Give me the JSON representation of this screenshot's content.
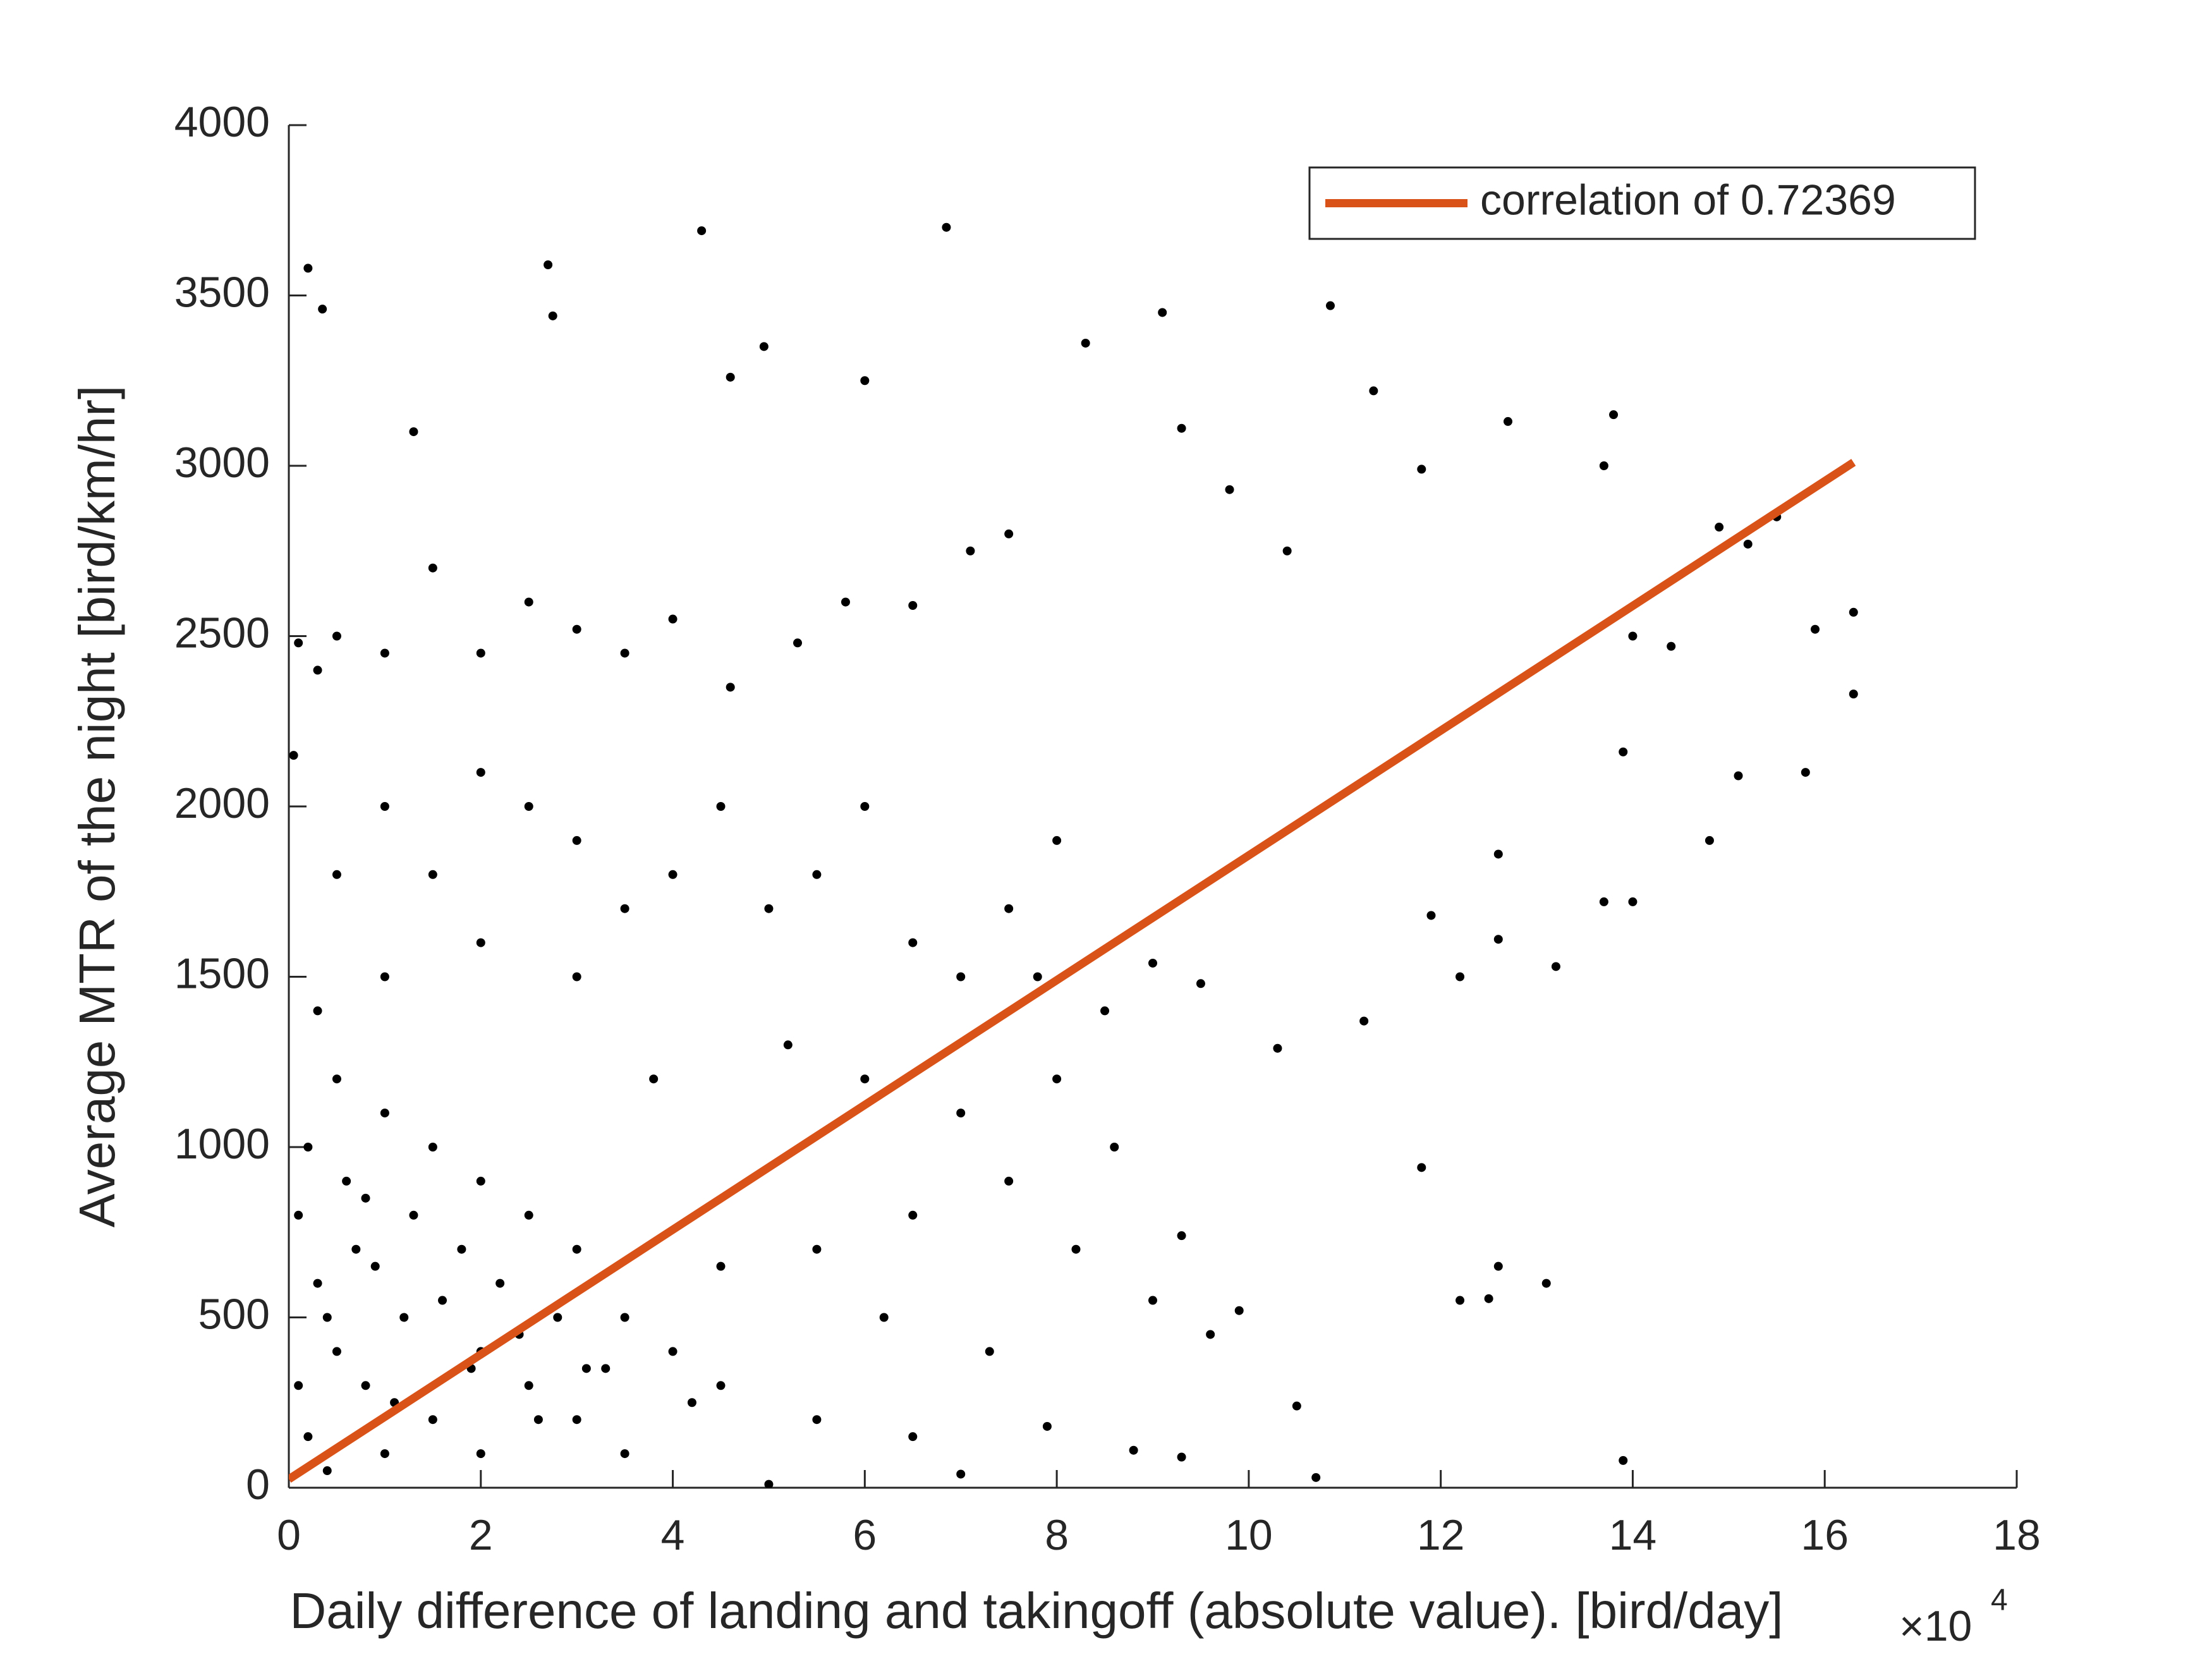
{
  "chart_data": {
    "type": "scatter",
    "xlabel": "Daily difference of landing and takingoff (absolute value). [bird/day]",
    "ylabel": "Average MTR of the night [bird/km/hr]",
    "x_scale_label": "×10",
    "x_scale_exponent": "4",
    "xlim": [
      0,
      18
    ],
    "xticks": [
      0,
      2,
      4,
      6,
      8,
      10,
      12,
      14,
      16,
      18
    ],
    "ylim": [
      0,
      4000
    ],
    "yticks": [
      0,
      500,
      1000,
      1500,
      2000,
      2500,
      3000,
      3500,
      4000
    ],
    "grid": false,
    "legend": "upper right",
    "series": [
      {
        "type": "scatter",
        "color": "#000000",
        "x": [
          0.2,
          0.35,
          1.3,
          2.7,
          2.75,
          4.3,
          6.85,
          4.95,
          4.6,
          6,
          9.1,
          10.85,
          8.3,
          11.3,
          12.7,
          13.8,
          13.7,
          11.8,
          9.3,
          9.8,
          10.4,
          14.9,
          15.2,
          15.5,
          16.3,
          16.3,
          15.9,
          15.8,
          15.1,
          14.8,
          14,
          14.4,
          13.9,
          13.7,
          14,
          13.2,
          12.6,
          12.2,
          12.6,
          11.9,
          11.2,
          10.3,
          9.5,
          9.0,
          8.5,
          8.0,
          7.8,
          7.5,
          7.1,
          7.5,
          6.5,
          5.8,
          5.3,
          4.6,
          4,
          3.5,
          3,
          2.5,
          2.0,
          1.5,
          1.0,
          0.5,
          0.3,
          0.1,
          0.05,
          0.5,
          1,
          1.5,
          2,
          2.5,
          3,
          3.5,
          4,
          4.5,
          5,
          5.5,
          6,
          6.5,
          7,
          3,
          2,
          1,
          0.3,
          3.8,
          5.2,
          6,
          7,
          8,
          8.6,
          7.5,
          6.5,
          5.5,
          4.5,
          6.2,
          7.3,
          8.2,
          9,
          9.6,
          9.9,
          9.3,
          11.8,
          12.2,
          12.5,
          12.6,
          13.1,
          10.5,
          8.8,
          9.3,
          7.9,
          10.7,
          13.9,
          7.0,
          5,
          4.5,
          4,
          3.5,
          3,
          2.5,
          2,
          1.5,
          1,
          0.5,
          0.2,
          0.1,
          0.3,
          0.5,
          0.8,
          1.2,
          1.5,
          2,
          2.5,
          3,
          3.5,
          2,
          1,
          0.4,
          0.1,
          0.6,
          1.8,
          2.8,
          3.3,
          4.2,
          5.5,
          6.5,
          1.3,
          0.9,
          2.2,
          0.7,
          1.6,
          2.4,
          3.1,
          0.2,
          1.1,
          1.9,
          2.6,
          0.4,
          0.8
        ],
        "values": [
          3580,
          3460,
          3100,
          3590,
          3440,
          3690,
          3700,
          3350,
          3260,
          3250,
          3450,
          3470,
          3360,
          3220,
          3130,
          3150,
          3000,
          2990,
          3110,
          2930,
          2750,
          2820,
          2770,
          2850,
          2570,
          2330,
          2520,
          2100,
          2090,
          1900,
          2500,
          2470,
          2160,
          1720,
          1720,
          1530,
          1610,
          1500,
          1860,
          1680,
          1370,
          1290,
          1480,
          1540,
          1400,
          1900,
          1500,
          1700,
          2750,
          2800,
          2590,
          2600,
          2480,
          2350,
          2550,
          2450,
          2520,
          2600,
          2450,
          2700,
          2450,
          2500,
          2400,
          2480,
          2150,
          1800,
          2000,
          1800,
          2100,
          2000,
          1900,
          1700,
          1800,
          2000,
          1700,
          1800,
          2000,
          1600,
          1500,
          1500,
          1600,
          1500,
          1400,
          1200,
          1300,
          1200,
          1100,
          1200,
          1000,
          900,
          800,
          700,
          650,
          500,
          400,
          700,
          550,
          450,
          520,
          740,
          940,
          550,
          555,
          650,
          600,
          240,
          110,
          90,
          180,
          30,
          80,
          40,
          10,
          300,
          400,
          500,
          700,
          800,
          900,
          1000,
          1100,
          1200,
          1000,
          800,
          600,
          400,
          300,
          500,
          200,
          400,
          300,
          200,
          100,
          100,
          100,
          50,
          300,
          900,
          700,
          500,
          350,
          250,
          200,
          150,
          800,
          650,
          600,
          700,
          550,
          450,
          350,
          150,
          250,
          350,
          200,
          500,
          850
        ]
      },
      {
        "type": "line",
        "name": "correlation of 0.72369",
        "color": "#d95319",
        "x": [
          0,
          16.3
        ],
        "values": [
          25,
          3010
        ]
      }
    ]
  }
}
